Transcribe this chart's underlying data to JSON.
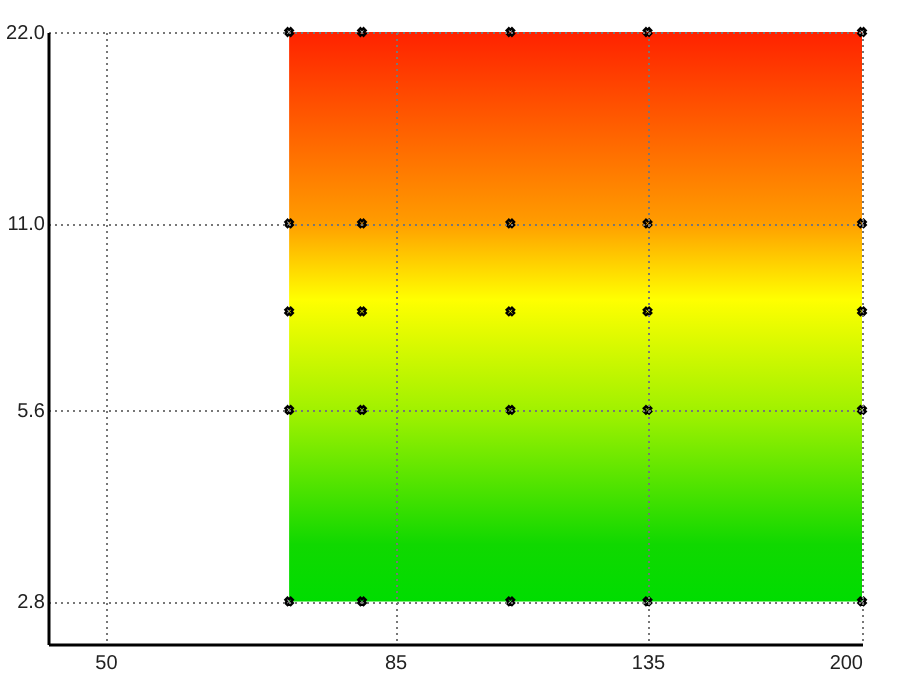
{
  "chart_data": {
    "type": "scatter",
    "x": [
      70,
      80,
      105,
      135,
      200,
      70,
      80,
      105,
      135,
      200,
      70,
      80,
      105,
      135,
      200,
      70,
      80,
      105,
      135,
      200,
      70,
      80,
      105,
      135,
      200
    ],
    "series": [
      {
        "color": "#000000",
        "values": [
          22,
          22,
          22,
          22,
          22,
          11,
          11,
          11,
          11,
          11,
          8,
          8,
          8,
          8,
          8,
          5.6,
          5.6,
          5.6,
          5.6,
          5.6,
          2.8,
          2.8,
          2.8,
          2.8,
          2.8
        ]
      }
    ],
    "xlim": [
      45,
      200
    ],
    "ylim": [
      2.4,
      22
    ],
    "xticks": [
      50,
      85,
      135,
      200
    ],
    "yticks": [
      {
        "value": 2.8,
        "label": "2.8"
      },
      {
        "value": 5.6,
        "label": "5.6"
      },
      {
        "value": 11,
        "label": "11.0"
      },
      {
        "value": 22,
        "label": "22.0"
      }
    ],
    "bands": [
      {
        "axis": "x",
        "from": 70,
        "to": 200
      }
    ],
    "log": "xy",
    "grid": true,
    "marker": "cross"
  }
}
